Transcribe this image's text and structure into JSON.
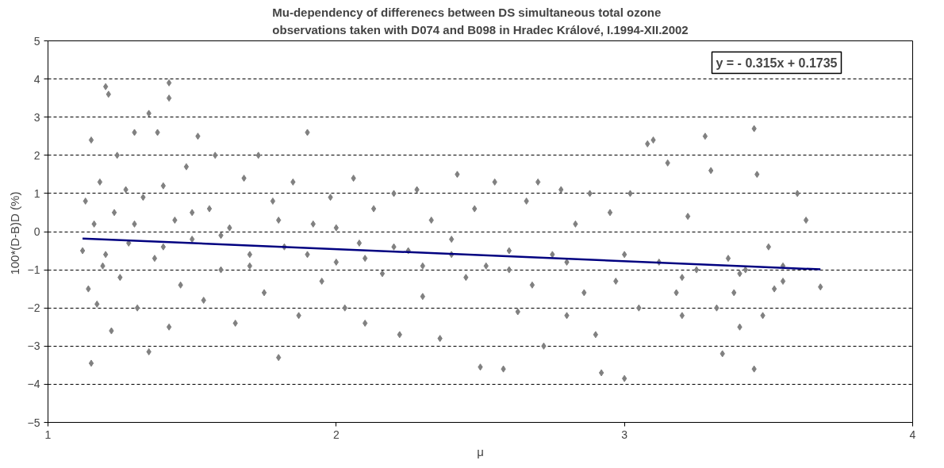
{
  "chart_data": {
    "type": "scatter",
    "title": "Mu-dependency of differenecs between DS simultaneous total ozone\nobservations taken with D074 and B098 in Hradec Králové, I.1994-XII.2002",
    "xlabel": "μ",
    "ylabel": "100*(D-B)D  (%)",
    "annotations": [
      "y = - 0.315x + 0.1735"
    ],
    "xlim": [
      1,
      4
    ],
    "xticks": [
      1,
      2,
      3,
      4
    ],
    "ylim": [
      -5,
      5
    ],
    "yticks": [
      -5,
      -4,
      -3,
      -2,
      -1,
      0,
      1,
      2,
      3,
      4,
      5
    ],
    "grid": "y",
    "marker": "diamond",
    "series": [
      {
        "color": "#808080",
        "x": [
          1.12,
          1.13,
          1.14,
          1.15,
          1.15,
          1.16,
          1.17,
          1.18,
          1.19,
          1.2,
          1.21,
          1.22,
          1.23,
          1.24,
          1.25,
          1.27,
          1.28,
          1.3,
          1.31,
          1.33,
          1.35,
          1.35,
          1.37,
          1.38,
          1.4,
          1.42,
          1.42,
          1.42,
          1.44,
          1.46,
          1.48,
          1.5,
          1.52,
          1.54,
          1.56,
          1.58,
          1.6,
          1.63,
          1.65,
          1.68,
          1.7,
          1.73,
          1.75,
          1.78,
          1.8,
          1.82,
          1.85,
          1.87,
          1.9,
          1.92,
          1.95,
          1.98,
          2.0,
          2.03,
          2.06,
          2.08,
          2.1,
          2.13,
          2.16,
          2.2,
          2.22,
          2.25,
          2.28,
          2.3,
          2.33,
          2.36,
          2.4,
          2.42,
          2.45,
          2.48,
          2.5,
          2.52,
          2.55,
          2.58,
          2.6,
          2.63,
          2.66,
          2.68,
          2.7,
          2.72,
          2.75,
          2.78,
          2.8,
          2.83,
          2.86,
          2.88,
          2.9,
          2.92,
          2.95,
          2.97,
          3.0,
          3.02,
          3.05,
          3.08,
          3.1,
          3.12,
          3.15,
          3.18,
          3.2,
          3.22,
          3.25,
          3.28,
          3.3,
          3.32,
          3.34,
          3.36,
          3.38,
          3.4,
          3.42,
          3.45,
          3.45,
          3.46,
          3.48,
          3.5,
          3.52,
          3.55,
          3.6,
          3.63,
          3.68,
          1.2,
          1.3,
          1.4,
          1.5,
          1.6,
          1.7,
          1.8,
          1.9,
          2.0,
          2.1,
          2.2,
          2.3,
          2.4,
          2.6,
          2.8,
          3.0,
          3.2,
          3.4,
          3.55
        ],
        "values": [
          -0.5,
          0.8,
          -1.5,
          2.4,
          -3.45,
          0.2,
          -1.9,
          1.3,
          -0.9,
          3.8,
          3.6,
          -2.6,
          0.5,
          2.0,
          -1.2,
          1.1,
          -0.3,
          2.6,
          -2.0,
          0.9,
          3.1,
          -3.15,
          -0.7,
          2.6,
          1.2,
          3.9,
          3.5,
          -2.5,
          0.3,
          -1.4,
          1.7,
          -0.2,
          2.5,
          -1.8,
          0.6,
          2.0,
          -1.0,
          0.1,
          -2.4,
          1.4,
          -0.6,
          2.0,
          -1.6,
          0.8,
          -3.3,
          -0.4,
          1.3,
          -2.2,
          2.6,
          0.2,
          -1.3,
          0.9,
          -0.8,
          -2.0,
          1.4,
          -0.3,
          -2.4,
          0.6,
          -1.1,
          1.0,
          -2.7,
          -0.5,
          1.1,
          -1.7,
          0.3,
          -2.8,
          -0.2,
          1.5,
          -1.2,
          0.6,
          -3.55,
          -0.9,
          1.3,
          -3.6,
          -0.5,
          -2.1,
          0.8,
          -1.4,
          1.3,
          -3.0,
          -0.6,
          1.1,
          -2.2,
          0.2,
          -1.6,
          1.0,
          -2.7,
          -3.7,
          0.5,
          -1.3,
          -3.85,
          1.0,
          -2.0,
          2.3,
          2.4,
          -0.8,
          1.8,
          -1.6,
          -2.2,
          0.4,
          -1.0,
          2.5,
          1.6,
          -2.0,
          -3.2,
          -0.7,
          -1.6,
          -2.5,
          -1.0,
          2.7,
          -3.6,
          1.5,
          -2.2,
          -0.4,
          -1.5,
          -0.9,
          1.0,
          0.3,
          -1.45,
          -0.6,
          0.2,
          -0.4,
          0.5,
          -0.1,
          -0.9,
          0.3,
          -0.6,
          0.1,
          -0.7,
          -0.4,
          -0.9,
          -0.6,
          -1.0,
          -0.8,
          -0.6,
          -1.2,
          -1.1,
          -1.3
        ]
      },
      {
        "type": "line",
        "marker": "none",
        "color": "#000080",
        "x": [
          1.12,
          3.68
        ],
        "values": [
          -0.18,
          -0.99
        ]
      }
    ]
  }
}
